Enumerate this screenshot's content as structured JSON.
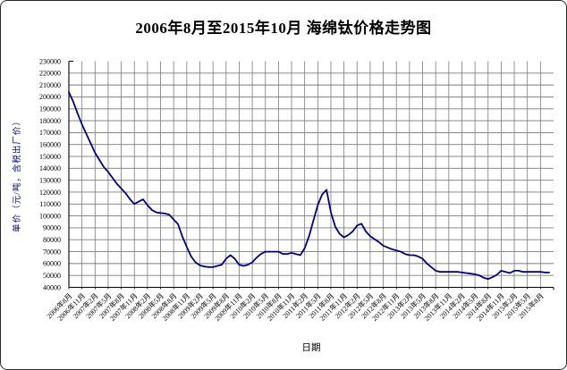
{
  "chart_data": {
    "type": "line",
    "title": "2006年8月至2015年10月 海绵钛价格走势图",
    "xlabel": "日期",
    "ylabel": "单价（元/吨，含税出厂价）",
    "grid": true,
    "legend_position": "none",
    "line_color": "#00008B",
    "y_axis": {
      "min": 40000,
      "max": 230000,
      "step": 10000,
      "tick_labels": [
        "230000",
        "220000",
        "210000",
        "200000",
        "190000",
        "180000",
        "170000",
        "160000",
        "150000",
        "140000",
        "130000",
        "120000",
        "110000",
        "100000",
        "90000",
        "80000",
        "70000",
        "60000",
        "50000",
        "40000"
      ]
    },
    "x_axis": {
      "tick_interval_months": 3,
      "tick_labels": [
        "2006年8月",
        "2006年11月",
        "2007年2月",
        "2007年5月",
        "2007年8月",
        "2007年11月",
        "2008年2月",
        "2008年5月",
        "2008年8月",
        "2008年11月",
        "2009年2月",
        "2009年5月",
        "2009年8月",
        "2009年11月",
        "2010年2月",
        "2010年5月",
        "2010年8月",
        "2010年11月",
        "2011年2月",
        "2011年5月",
        "2011年8月",
        "2011年11月",
        "2012年2月",
        "2012年5月",
        "2012年8月",
        "2012年11月",
        "2013年2月",
        "2013年5月",
        "2013年8月",
        "2013年11月",
        "2014年2月",
        "2014年5月",
        "2014年8月",
        "2014年11月",
        "2015年2月",
        "2015年5月",
        "2015年8月"
      ]
    },
    "series": [
      {
        "name": "海绵钛价格",
        "interval": "monthly",
        "start_month": "2006年8月",
        "end_month": "2015年10月",
        "values": [
          204000,
          196000,
          186000,
          177000,
          169000,
          161000,
          153000,
          147000,
          141000,
          137000,
          132000,
          127000,
          123000,
          119000,
          114000,
          110000,
          112000,
          114000,
          109000,
          105000,
          103000,
          102500,
          102000,
          101000,
          97000,
          93000,
          82500,
          74000,
          66000,
          61000,
          58500,
          57500,
          57000,
          57000,
          58000,
          59000,
          64000,
          67000,
          64000,
          59000,
          58000,
          59000,
          61000,
          65000,
          68000,
          70000,
          70000,
          70000,
          70000,
          68000,
          68000,
          69000,
          68000,
          67000,
          73000,
          83000,
          96000,
          109000,
          118000,
          122000,
          103000,
          91000,
          85000,
          82000,
          84000,
          87000,
          92000,
          93500,
          87000,
          83000,
          80500,
          78000,
          75000,
          73500,
          72000,
          71000,
          70000,
          68000,
          67000,
          67000,
          66000,
          64000,
          60000,
          57000,
          54000,
          53000,
          53000,
          53000,
          53000,
          53000,
          52500,
          52000,
          51500,
          51000,
          50000,
          48000,
          47000,
          48500,
          50500,
          54000,
          53000,
          52000,
          54000,
          54000,
          53000,
          53000,
          53000,
          53000,
          53000,
          52500,
          52500
        ]
      }
    ]
  }
}
